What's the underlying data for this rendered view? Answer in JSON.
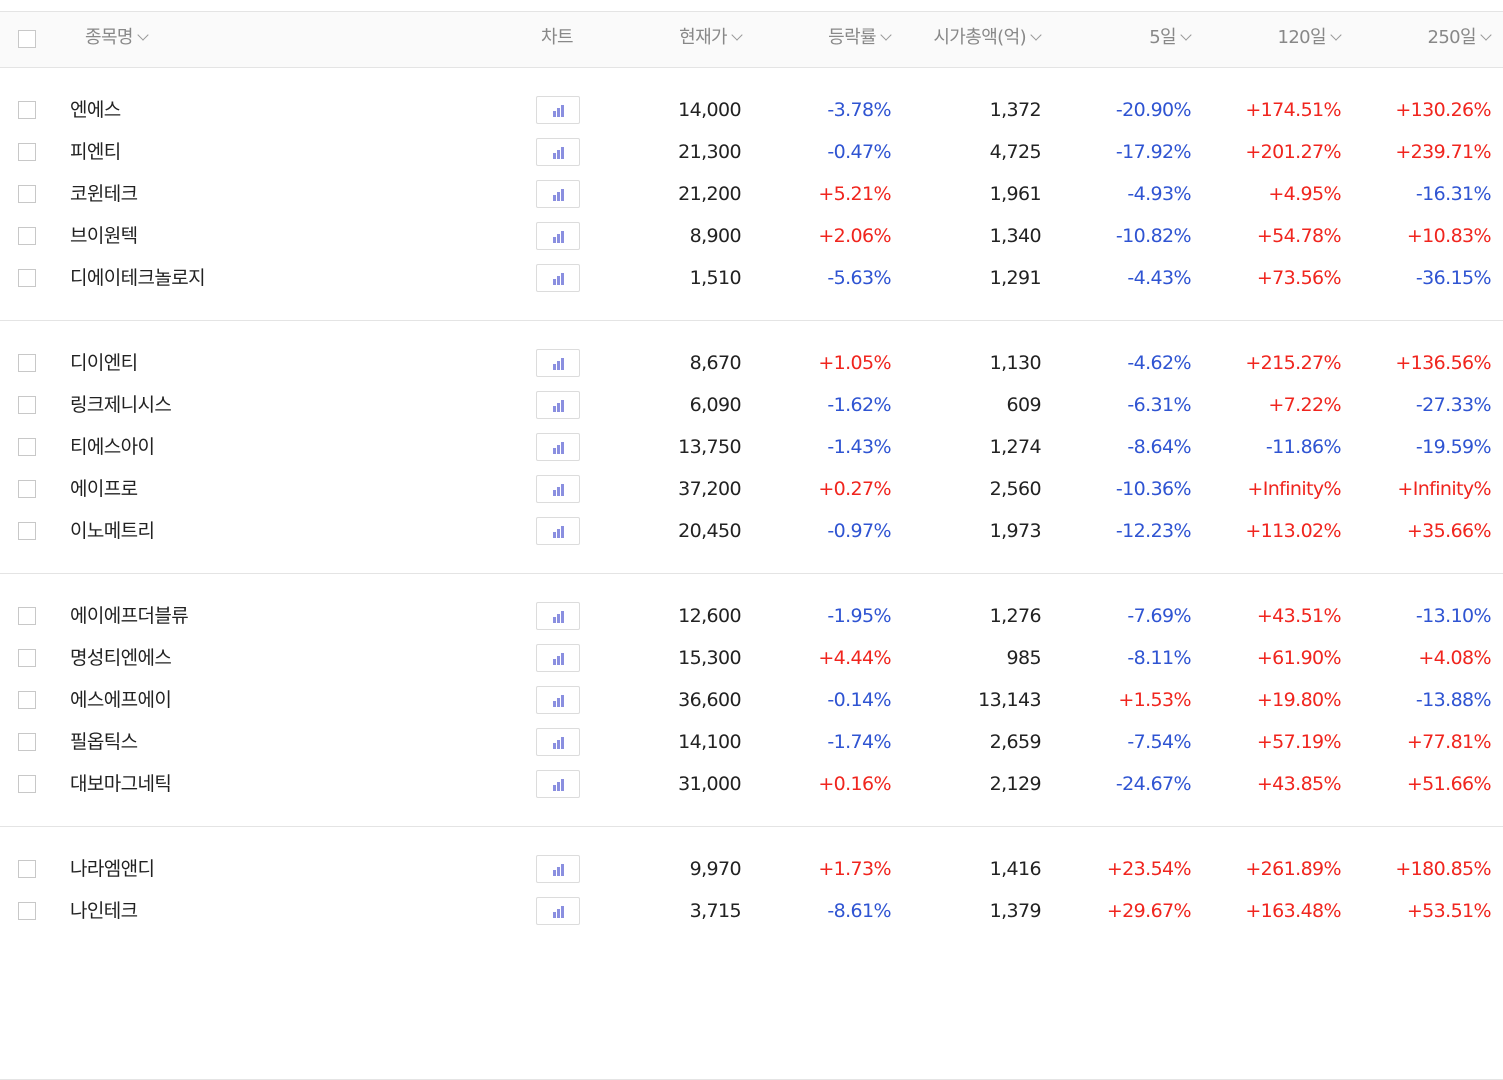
{
  "header": {
    "name": "종목명",
    "chart": "차트",
    "price": "현재가",
    "rate": "등락률",
    "market_cap": "시가총액(억)",
    "period_5": "5일",
    "period_120": "120일",
    "period_250": "250일"
  },
  "colors": {
    "up": "#f0251e",
    "down": "#2f54d2",
    "chart_icon": "#8a8fe0"
  },
  "chart_icon": "bar-chart-icon",
  "groups": [
    {
      "rows": [
        {
          "name": "엔에스",
          "price": "14,000",
          "rate": "-3.78%",
          "cap": "1,372",
          "d5": "-20.90%",
          "d120": "+174.51%",
          "d250": "+130.26%"
        },
        {
          "name": "피엔티",
          "price": "21,300",
          "rate": "-0.47%",
          "cap": "4,725",
          "d5": "-17.92%",
          "d120": "+201.27%",
          "d250": "+239.71%"
        },
        {
          "name": "코윈테크",
          "price": "21,200",
          "rate": "+5.21%",
          "cap": "1,961",
          "d5": "-4.93%",
          "d120": "+4.95%",
          "d250": "-16.31%"
        },
        {
          "name": "브이원텍",
          "price": "8,900",
          "rate": "+2.06%",
          "cap": "1,340",
          "d5": "-10.82%",
          "d120": "+54.78%",
          "d250": "+10.83%"
        },
        {
          "name": "디에이테크놀로지",
          "price": "1,510",
          "rate": "-5.63%",
          "cap": "1,291",
          "d5": "-4.43%",
          "d120": "+73.56%",
          "d250": "-36.15%"
        }
      ]
    },
    {
      "rows": [
        {
          "name": "디이엔티",
          "price": "8,670",
          "rate": "+1.05%",
          "cap": "1,130",
          "d5": "-4.62%",
          "d120": "+215.27%",
          "d250": "+136.56%"
        },
        {
          "name": "링크제니시스",
          "price": "6,090",
          "rate": "-1.62%",
          "cap": "609",
          "d5": "-6.31%",
          "d120": "+7.22%",
          "d250": "-27.33%"
        },
        {
          "name": "티에스아이",
          "price": "13,750",
          "rate": "-1.43%",
          "cap": "1,274",
          "d5": "-8.64%",
          "d120": "-11.86%",
          "d250": "-19.59%"
        },
        {
          "name": "에이프로",
          "price": "37,200",
          "rate": "+0.27%",
          "cap": "2,560",
          "d5": "-10.36%",
          "d120": "+Infinity%",
          "d250": "+Infinity%"
        },
        {
          "name": "이노메트리",
          "price": "20,450",
          "rate": "-0.97%",
          "cap": "1,973",
          "d5": "-12.23%",
          "d120": "+113.02%",
          "d250": "+35.66%"
        }
      ]
    },
    {
      "rows": [
        {
          "name": "에이에프더블류",
          "price": "12,600",
          "rate": "-1.95%",
          "cap": "1,276",
          "d5": "-7.69%",
          "d120": "+43.51%",
          "d250": "-13.10%"
        },
        {
          "name": "명성티엔에스",
          "price": "15,300",
          "rate": "+4.44%",
          "cap": "985",
          "d5": "-8.11%",
          "d120": "+61.90%",
          "d250": "+4.08%"
        },
        {
          "name": "에스에프에이",
          "price": "36,600",
          "rate": "-0.14%",
          "cap": "13,143",
          "d5": "+1.53%",
          "d120": "+19.80%",
          "d250": "-13.88%"
        },
        {
          "name": "필옵틱스",
          "price": "14,100",
          "rate": "-1.74%",
          "cap": "2,659",
          "d5": "-7.54%",
          "d120": "+57.19%",
          "d250": "+77.81%"
        },
        {
          "name": "대보마그네틱",
          "price": "31,000",
          "rate": "+0.16%",
          "cap": "2,129",
          "d5": "-24.67%",
          "d120": "+43.85%",
          "d250": "+51.66%"
        }
      ]
    },
    {
      "rows": [
        {
          "name": "나라엠앤디",
          "price": "9,970",
          "rate": "+1.73%",
          "cap": "1,416",
          "d5": "+23.54%",
          "d120": "+261.89%",
          "d250": "+180.85%"
        },
        {
          "name": "나인테크",
          "price": "3,715",
          "rate": "-8.61%",
          "cap": "1,379",
          "d5": "+29.67%",
          "d120": "+163.48%",
          "d250": "+53.51%"
        }
      ]
    }
  ]
}
